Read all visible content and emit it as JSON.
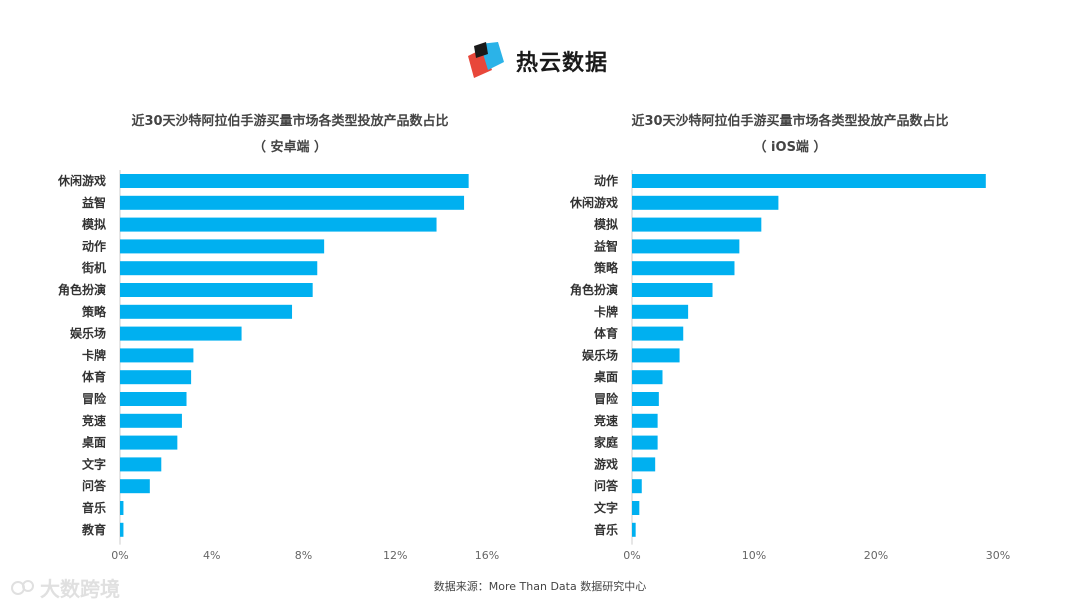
{
  "logo": {
    "text": "热云数据",
    "brand_colors": [
      "#e8473a",
      "#2bb3e8",
      "#1a1a1a"
    ]
  },
  "watermark": {
    "text": "大数跨境"
  },
  "source": "数据来源：More Than Data 数据研究中心",
  "chart_data": [
    {
      "type": "bar",
      "orientation": "horizontal",
      "title": "近30天沙特阿拉伯手游买量市场各类型投放产品数占比",
      "subtitle": "（ 安卓端 ）",
      "categories": [
        "休闲游戏",
        "益智",
        "模拟",
        "动作",
        "街机",
        "角色扮演",
        "策略",
        "娱乐场",
        "卡牌",
        "体育",
        "冒险",
        "竞速",
        "桌面",
        "文字",
        "问答",
        "音乐",
        "教育"
      ],
      "values": [
        15.2,
        15.0,
        13.8,
        8.9,
        8.6,
        8.4,
        7.5,
        5.3,
        3.2,
        3.1,
        2.9,
        2.7,
        2.5,
        1.8,
        1.3,
        0.15,
        0.15
      ],
      "xlim": [
        0,
        16
      ],
      "xticks": [
        0,
        4,
        8,
        12,
        16
      ],
      "tick_labels": [
        "0%",
        "4%",
        "8%",
        "12%",
        "16%"
      ],
      "bar_color": "#00b0f0"
    },
    {
      "type": "bar",
      "orientation": "horizontal",
      "title": "近30天沙特阿拉伯手游买量市场各类型投放产品数占比",
      "subtitle": "（ iOS端 ）",
      "categories": [
        "动作",
        "休闲游戏",
        "模拟",
        "益智",
        "策略",
        "角色扮演",
        "卡牌",
        "体育",
        "娱乐场",
        "桌面",
        "冒险",
        "竞速",
        "家庭",
        "游戏",
        "问答",
        "文字",
        "音乐"
      ],
      "values": [
        29.0,
        12.0,
        10.6,
        8.8,
        8.4,
        6.6,
        4.6,
        4.2,
        3.9,
        2.5,
        2.2,
        2.1,
        2.1,
        1.9,
        0.8,
        0.6,
        0.3
      ],
      "xlim": [
        0,
        30
      ],
      "xticks": [
        0,
        10,
        20,
        30
      ],
      "tick_labels": [
        "0%",
        "10%",
        "20%",
        "30%"
      ],
      "bar_color": "#00b0f0"
    }
  ]
}
